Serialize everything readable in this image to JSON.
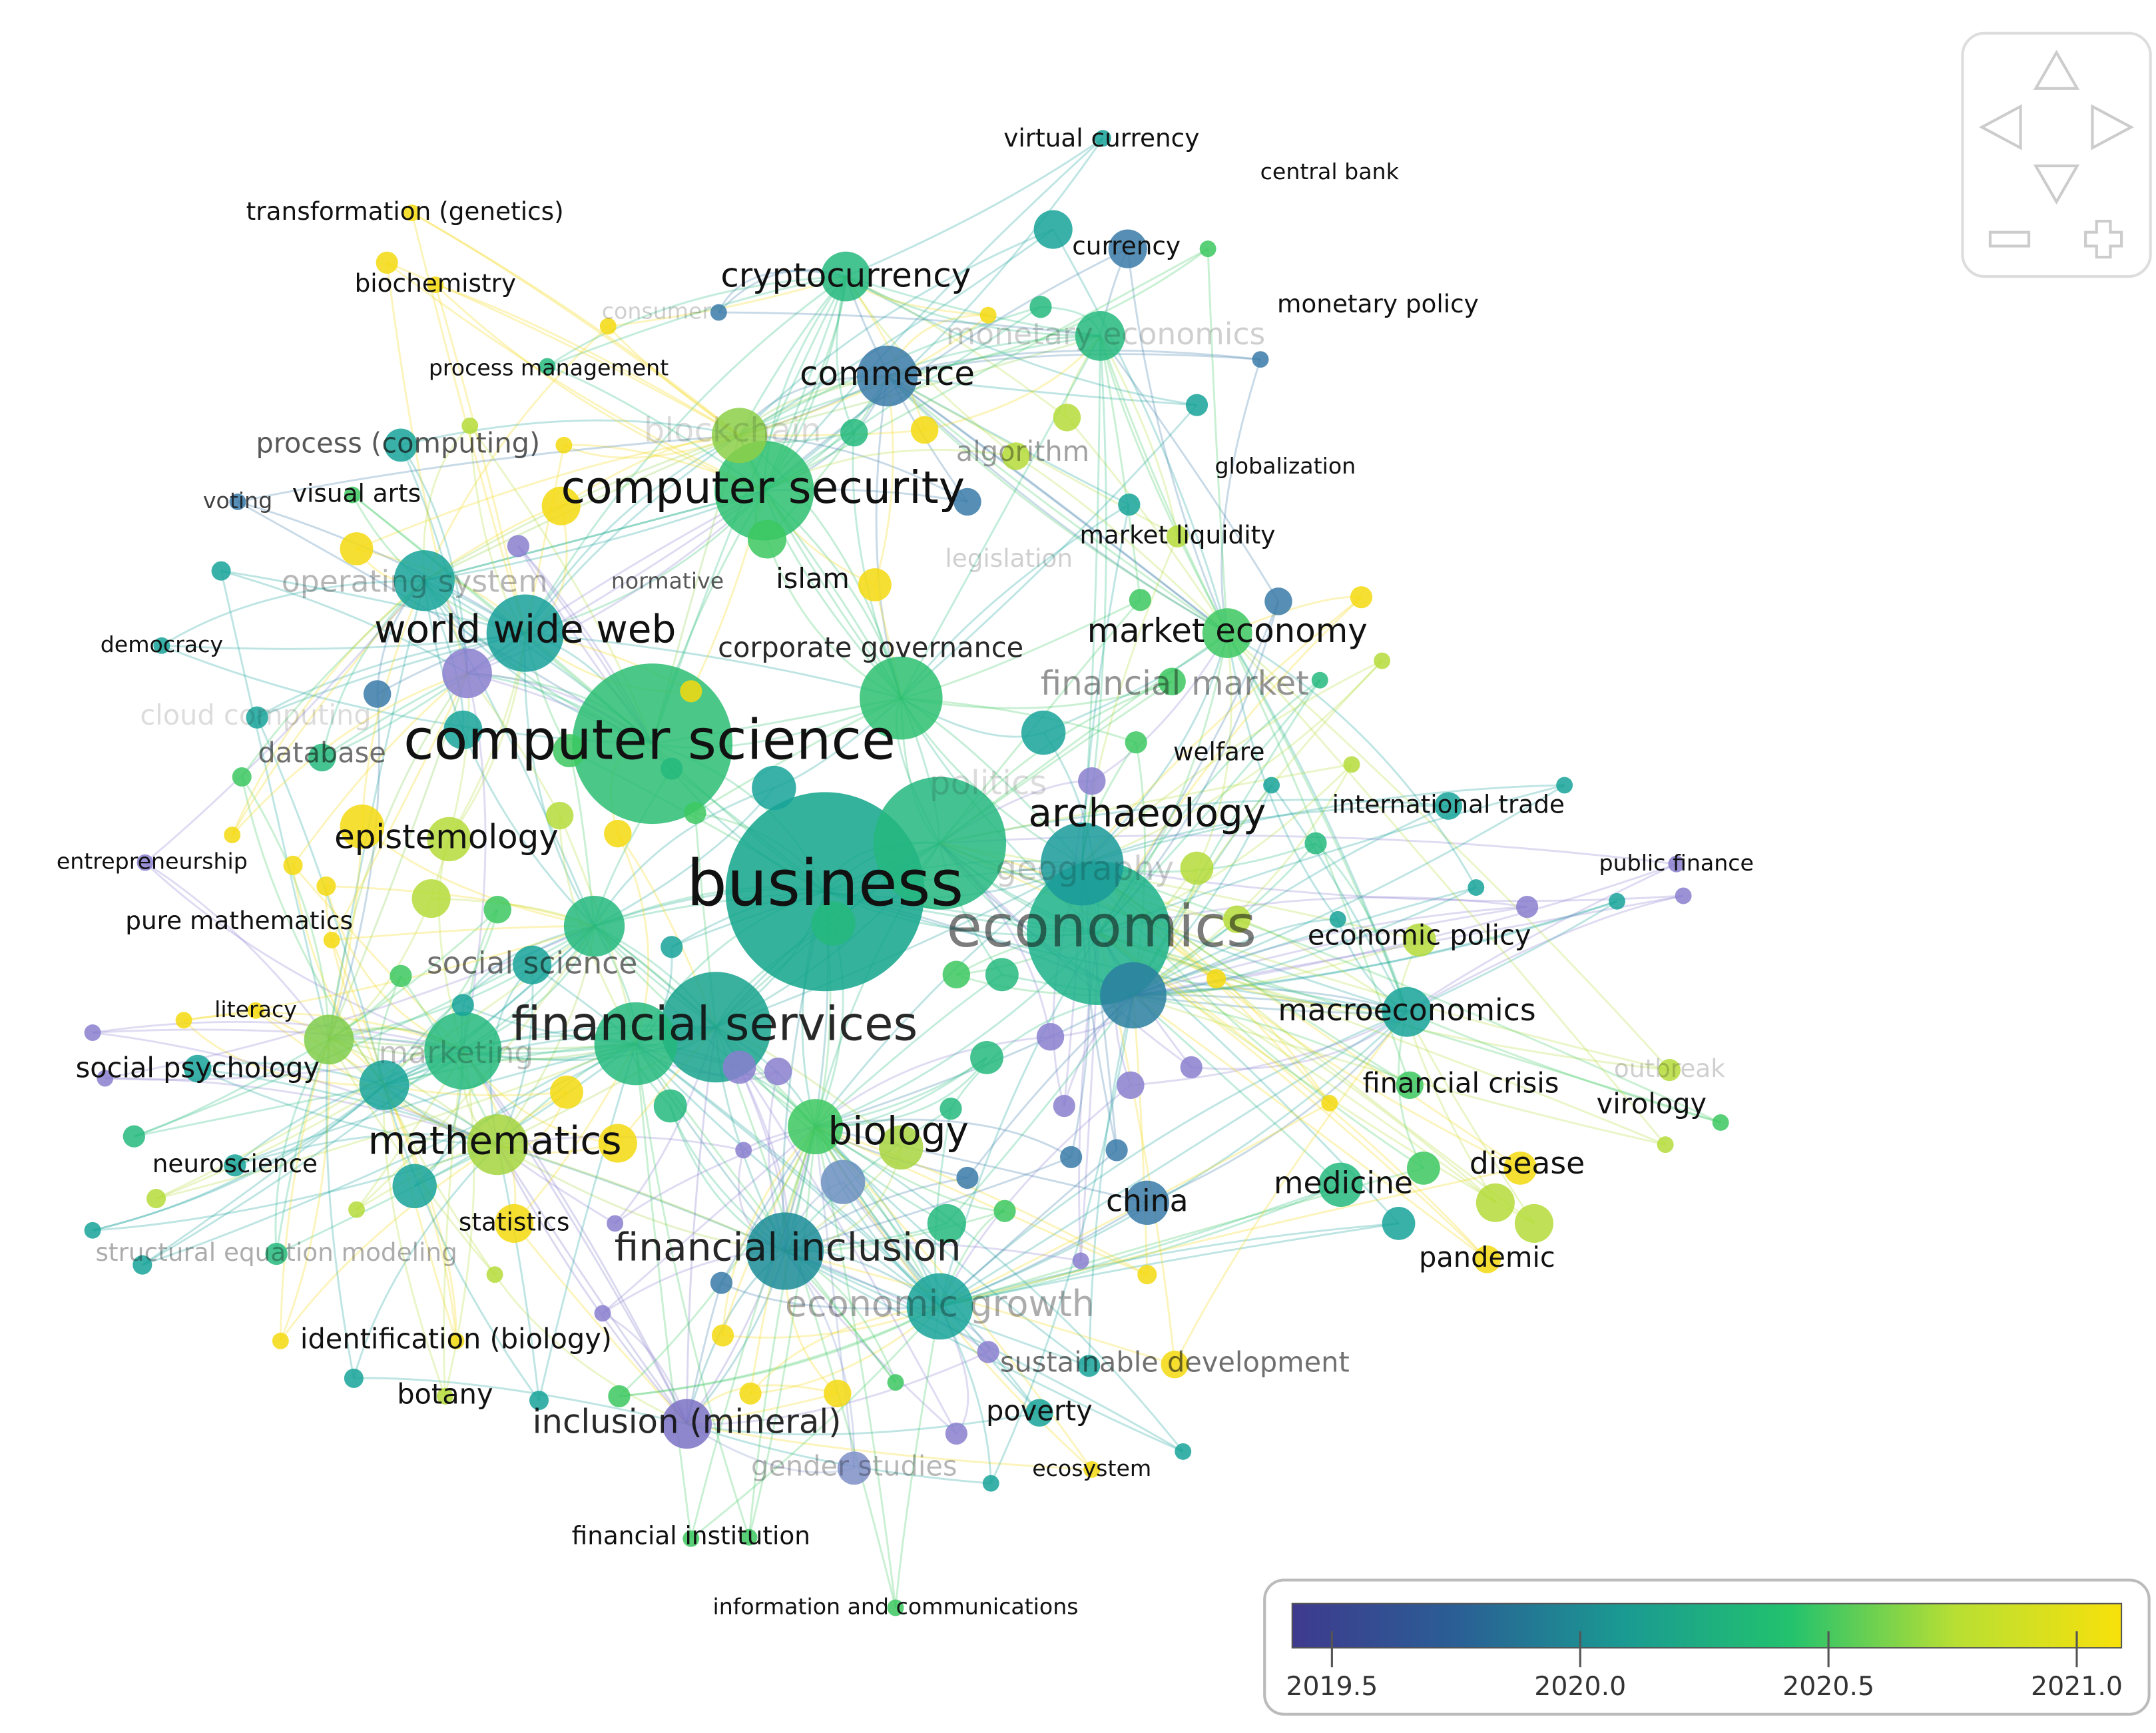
{
  "nodes": [
    {
      "label": "business"
    },
    {
      "label": "computer science"
    },
    {
      "label": "economics"
    },
    {
      "label": "financial services"
    },
    {
      "label": "computer security"
    },
    {
      "label": "world wide web"
    },
    {
      "label": "financial inclusion"
    },
    {
      "label": "archaeology"
    },
    {
      "label": "biology"
    },
    {
      "label": "mathematics"
    },
    {
      "label": "epistemology"
    },
    {
      "label": "market economy"
    },
    {
      "label": "cryptocurrency"
    },
    {
      "label": "commerce"
    },
    {
      "label": "financial market"
    },
    {
      "label": "inclusion (mineral)"
    },
    {
      "label": "economic growth"
    },
    {
      "label": "macroeconomics"
    },
    {
      "label": "china"
    },
    {
      "label": "medicine"
    },
    {
      "label": "disease"
    },
    {
      "label": "social science"
    },
    {
      "label": "politics"
    },
    {
      "label": "geography"
    },
    {
      "label": "blockchain"
    },
    {
      "label": "islam"
    },
    {
      "label": "corporate governance"
    },
    {
      "label": "algorithm"
    },
    {
      "label": "legislation"
    },
    {
      "label": "monetary economics"
    },
    {
      "label": "marketing"
    },
    {
      "label": "operating system"
    },
    {
      "label": "database"
    },
    {
      "label": "cloud computing"
    },
    {
      "label": "process (computing)"
    },
    {
      "label": "normative"
    },
    {
      "label": "welfare"
    },
    {
      "label": "international trade"
    },
    {
      "label": "economic policy"
    },
    {
      "label": "financial crisis"
    },
    {
      "label": "virology"
    },
    {
      "label": "outbreak"
    },
    {
      "label": "pandemic"
    },
    {
      "label": "public finance"
    },
    {
      "label": "sustainable development"
    },
    {
      "label": "poverty"
    },
    {
      "label": "gender studies"
    },
    {
      "label": "ecosystem"
    },
    {
      "label": "financial institution"
    },
    {
      "label": "information and communications"
    },
    {
      "label": "botany"
    },
    {
      "label": "identification (biology)"
    },
    {
      "label": "statistics"
    },
    {
      "label": "structural equation modeling"
    },
    {
      "label": "neuroscience"
    },
    {
      "label": "social psychology"
    },
    {
      "label": "literacy"
    },
    {
      "label": "pure mathematics"
    },
    {
      "label": "entrepreneurship"
    },
    {
      "label": "democracy"
    },
    {
      "label": "voting"
    },
    {
      "label": "visual arts"
    },
    {
      "label": "process management"
    },
    {
      "label": "biochemistry"
    },
    {
      "label": "transformation (genetics)"
    },
    {
      "label": "virtual currency"
    },
    {
      "label": "central bank"
    },
    {
      "label": "currency"
    },
    {
      "label": "monetary policy"
    },
    {
      "label": "globalization"
    },
    {
      "label": "market liquidity"
    },
    {
      "label": "consumer"
    }
  ],
  "color_scale": {
    "range": [
      2019.42,
      2021.09
    ],
    "ticks": [
      {
        "value": 2019.5,
        "label": "2019.5"
      },
      {
        "value": 2020.0,
        "label": "2020.0"
      },
      {
        "value": 2020.5,
        "label": "2020.5"
      },
      {
        "value": 2021.0,
        "label": "2021.0"
      }
    ],
    "colors": [
      "#3e3a8e",
      "#2a5f95",
      "#1a9a92",
      "#22c26e",
      "#b8df33",
      "#f8e10b"
    ]
  }
}
